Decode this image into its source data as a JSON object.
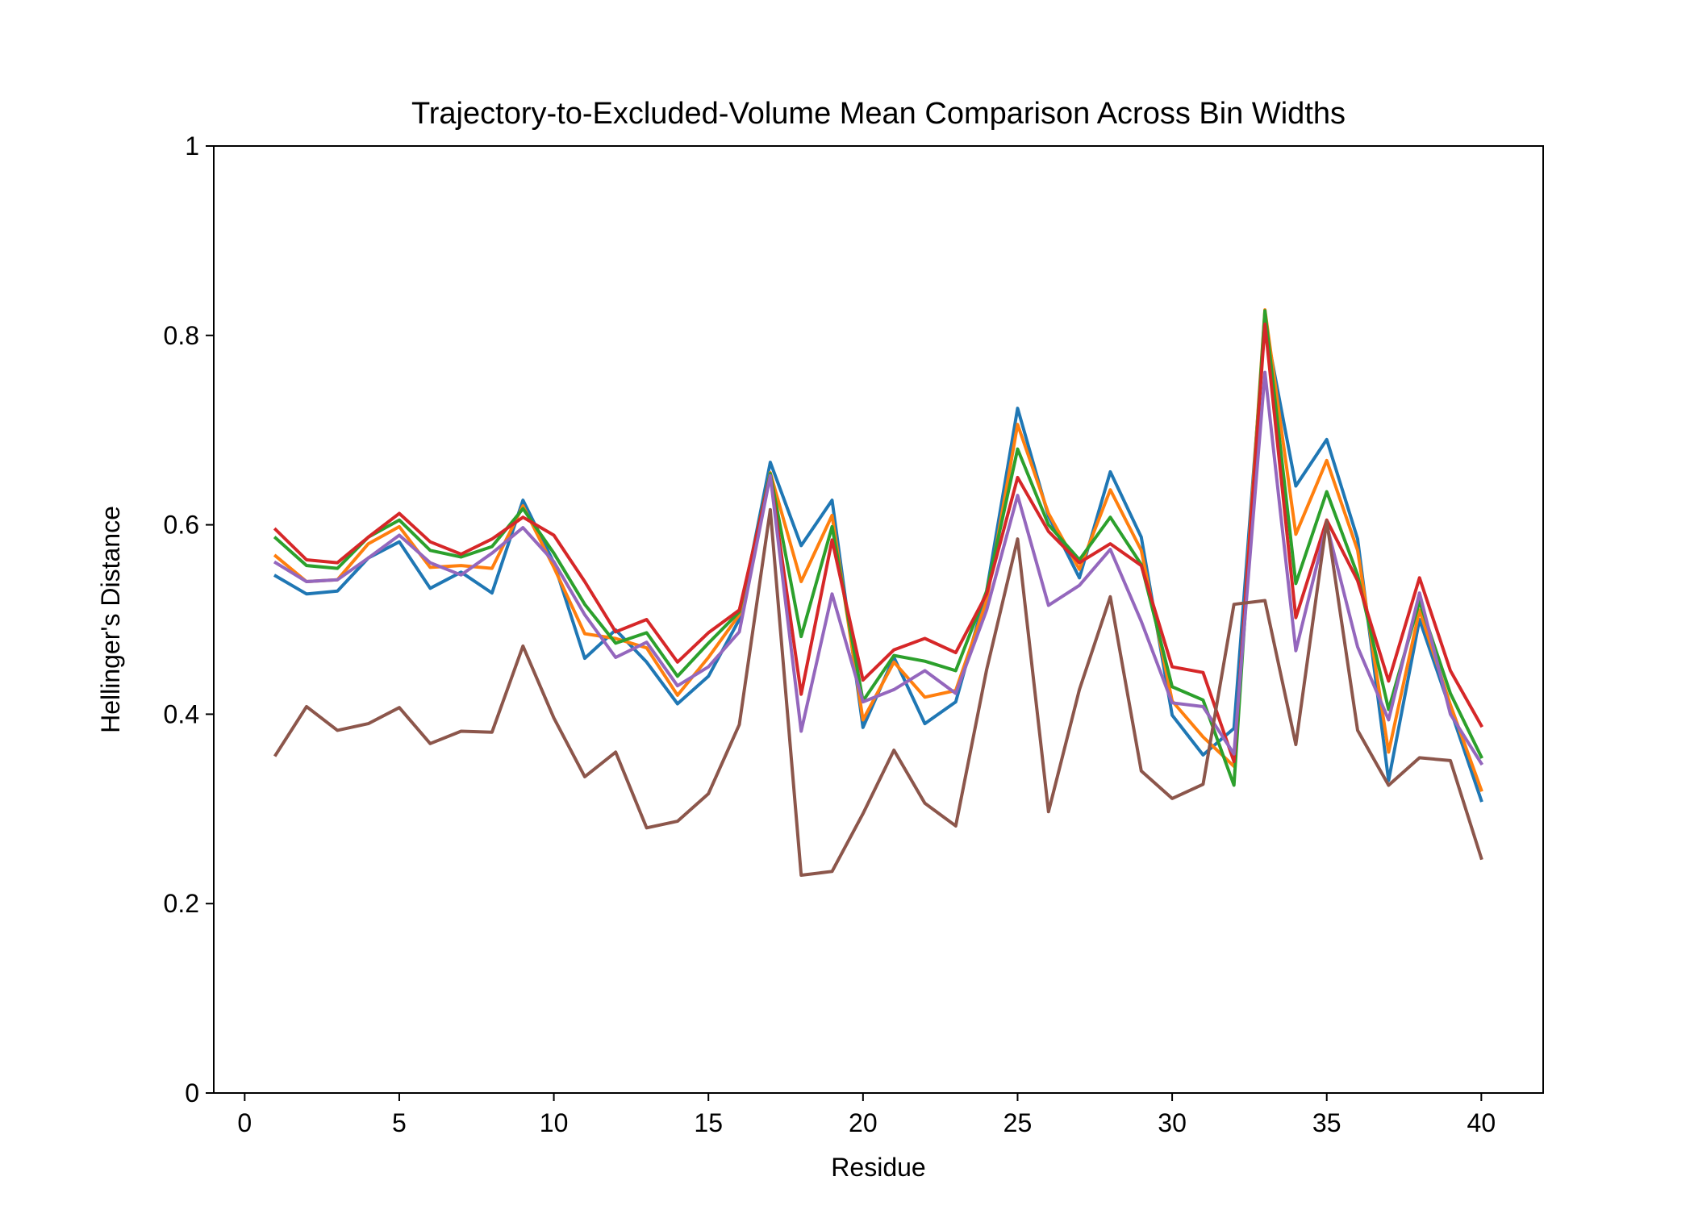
{
  "chart_data": {
    "type": "line",
    "title": "Trajectory-to-Excluded-Volume Mean Comparison Across Bin Widths",
    "xlabel": "Residue",
    "ylabel": "Hellinger's Distance",
    "xlim": [
      -1,
      42
    ],
    "ylim": [
      0,
      1
    ],
    "xticks": [
      0,
      5,
      10,
      15,
      20,
      25,
      30,
      35,
      40
    ],
    "yticks": [
      0,
      0.2,
      0.4,
      0.6,
      0.8,
      1
    ],
    "ytick_labels": [
      "0",
      "0.2",
      "0.4",
      "0.6",
      "0.8",
      "1"
    ],
    "grid": false,
    "x": [
      1,
      2,
      3,
      4,
      5,
      6,
      7,
      8,
      9,
      10,
      11,
      12,
      13,
      14,
      15,
      16,
      17,
      18,
      19,
      20,
      21,
      22,
      23,
      24,
      25,
      26,
      27,
      28,
      29,
      30,
      31,
      32,
      33,
      34,
      35,
      36,
      37,
      38,
      39,
      40
    ],
    "series": [
      {
        "color": "#1f77b4",
        "values": [
          0.546,
          0.527,
          0.53,
          0.565,
          0.582,
          0.533,
          0.55,
          0.528,
          0.626,
          0.56,
          0.459,
          0.489,
          0.455,
          0.411,
          0.44,
          0.5,
          0.666,
          0.578,
          0.626,
          0.386,
          0.46,
          0.39,
          0.413,
          0.53,
          0.723,
          0.609,
          0.544,
          0.656,
          0.587,
          0.399,
          0.357,
          0.385,
          0.813,
          0.641,
          0.69,
          0.585,
          0.33,
          0.5,
          0.405,
          0.309
        ]
      },
      {
        "color": "#ff7f0e",
        "values": [
          0.567,
          0.54,
          0.542,
          0.58,
          0.598,
          0.555,
          0.557,
          0.554,
          0.62,
          0.555,
          0.485,
          0.48,
          0.47,
          0.42,
          0.46,
          0.505,
          0.655,
          0.54,
          0.61,
          0.394,
          0.455,
          0.418,
          0.425,
          0.52,
          0.706,
          0.612,
          0.553,
          0.637,
          0.573,
          0.414,
          0.376,
          0.345,
          0.827,
          0.59,
          0.668,
          0.573,
          0.36,
          0.51,
          0.41,
          0.32
        ]
      },
      {
        "color": "#2ca02c",
        "values": [
          0.586,
          0.557,
          0.554,
          0.587,
          0.605,
          0.573,
          0.566,
          0.577,
          0.617,
          0.57,
          0.516,
          0.475,
          0.486,
          0.44,
          0.475,
          0.508,
          0.654,
          0.482,
          0.598,
          0.414,
          0.462,
          0.456,
          0.446,
          0.53,
          0.68,
          0.6,
          0.563,
          0.608,
          0.558,
          0.429,
          0.415,
          0.325,
          0.826,
          0.538,
          0.635,
          0.547,
          0.405,
          0.519,
          0.422,
          0.355
        ]
      },
      {
        "color": "#d62728",
        "values": [
          0.595,
          0.563,
          0.56,
          0.587,
          0.612,
          0.582,
          0.569,
          0.585,
          0.608,
          0.589,
          0.54,
          0.487,
          0.5,
          0.455,
          0.486,
          0.51,
          0.652,
          0.421,
          0.584,
          0.436,
          0.468,
          0.48,
          0.465,
          0.527,
          0.65,
          0.593,
          0.56,
          0.58,
          0.557,
          0.45,
          0.444,
          0.35,
          0.812,
          0.502,
          0.605,
          0.541,
          0.435,
          0.544,
          0.446,
          0.388
        ]
      },
      {
        "color": "#9467bd",
        "values": [
          0.56,
          0.54,
          0.542,
          0.565,
          0.589,
          0.56,
          0.547,
          0.57,
          0.597,
          0.561,
          0.505,
          0.46,
          0.476,
          0.43,
          0.45,
          0.487,
          0.652,
          0.382,
          0.527,
          0.413,
          0.426,
          0.446,
          0.422,
          0.51,
          0.631,
          0.515,
          0.536,
          0.574,
          0.498,
          0.412,
          0.408,
          0.358,
          0.761,
          0.467,
          0.6,
          0.471,
          0.394,
          0.528,
          0.4,
          0.348
        ]
      },
      {
        "color": "#8c564b",
        "values": [
          0.357,
          0.408,
          0.383,
          0.39,
          0.407,
          0.369,
          0.382,
          0.381,
          0.472,
          0.396,
          0.334,
          0.36,
          0.28,
          0.287,
          0.316,
          0.389,
          0.616,
          0.23,
          0.234,
          0.295,
          0.362,
          0.306,
          0.282,
          0.447,
          0.585,
          0.297,
          0.426,
          0.524,
          0.34,
          0.311,
          0.326,
          0.516,
          0.52,
          0.368,
          0.604,
          0.383,
          0.325,
          0.354,
          0.351,
          0.248
        ]
      }
    ]
  }
}
